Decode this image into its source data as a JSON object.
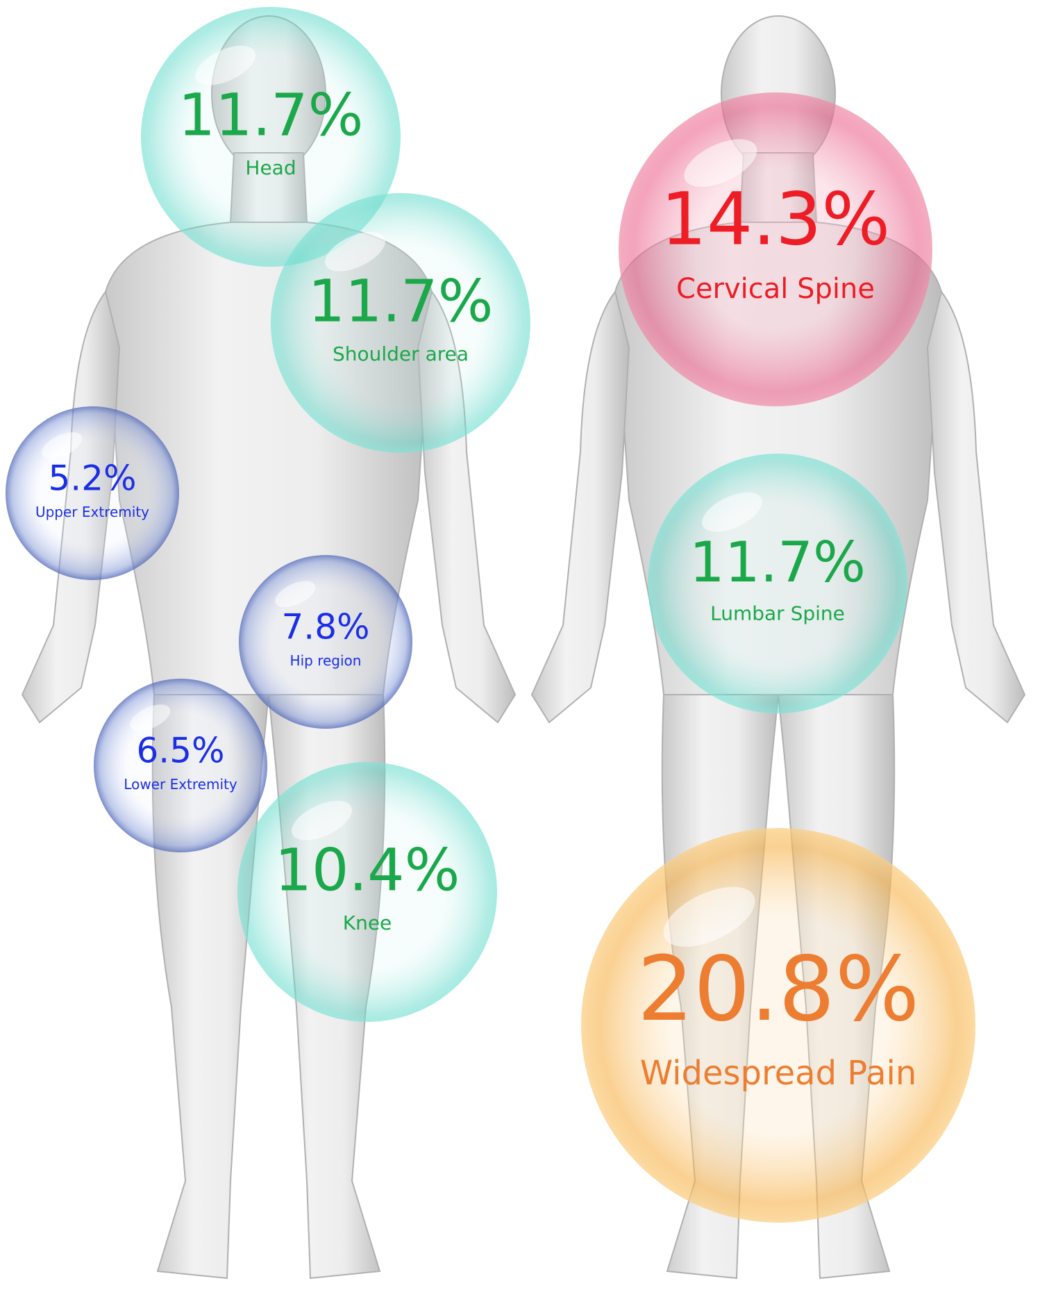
{
  "bubbles": [
    {
      "value": "11.7%",
      "label": "Head"
    },
    {
      "value": "11.7%",
      "label": "Shoulder area"
    },
    {
      "value": "5.2%",
      "label": "Upper Extremity"
    },
    {
      "value": "7.8%",
      "label": "Hip region"
    },
    {
      "value": "6.5%",
      "label": "Lower Extremity"
    },
    {
      "value": "10.4%",
      "label": "Knee"
    },
    {
      "value": "14.3%",
      "label": "Cervical Spine"
    },
    {
      "value": "11.7%",
      "label": "Lumbar Spine"
    },
    {
      "value": "20.8%",
      "label": "Widespread Pain"
    }
  ]
}
